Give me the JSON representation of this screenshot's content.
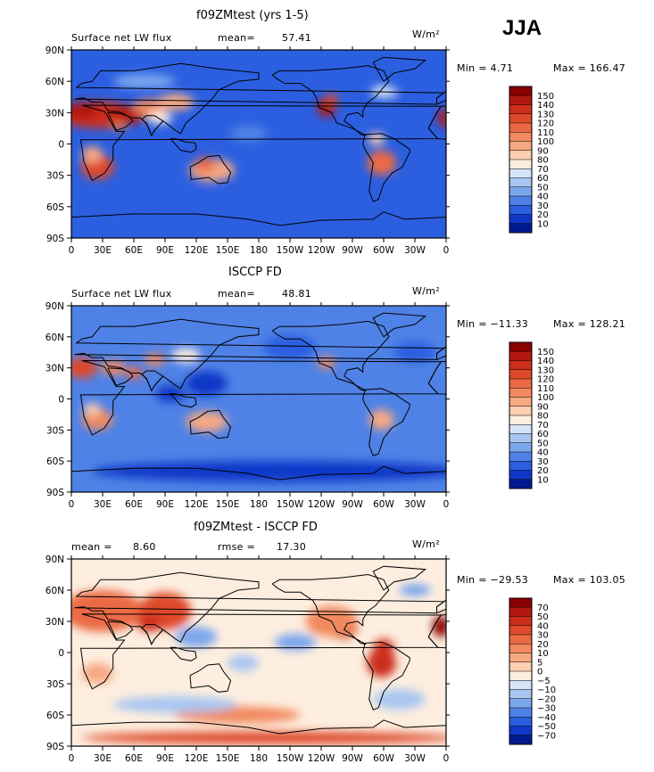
{
  "season_label": "JJA",
  "panels": [
    {
      "title": "f09ZMtest (yrs 1-5)",
      "left_label": "Surface net LW flux",
      "stat_label": "mean=",
      "stat_value": "57.41",
      "units": "W/m²",
      "min_text": "Min =    4.71",
      "max_text": "Max = 166.47"
    },
    {
      "title": "ISCCP FD",
      "left_label": "Surface net LW flux",
      "stat_label": "mean=",
      "stat_value": "48.81",
      "units": "W/m²",
      "min_text": "Min = −11.33",
      "max_text": "Max = 128.21"
    },
    {
      "title": "f09ZMtest - ISCCP FD",
      "left_label": "mean =",
      "left_value": "8.60",
      "stat_label": "rmse =",
      "stat_value": "17.30",
      "units": "W/m²",
      "min_text": "Min = −29.53",
      "max_text": "Max = 103.05"
    }
  ],
  "chart_data": [
    {
      "type": "heatmap",
      "title": "f09ZMtest (yrs 1-5)",
      "subtitle": "Surface net LW flux",
      "units": "W/m²",
      "mean": 57.41,
      "min": 4.71,
      "max": 166.47,
      "x_ticks": [
        "0",
        "30E",
        "60E",
        "90E",
        "120E",
        "150E",
        "180",
        "150W",
        "120W",
        "90W",
        "60W",
        "30W",
        "0"
      ],
      "y_ticks": [
        "90N",
        "60N",
        "30N",
        "0",
        "30S",
        "60S",
        "90S"
      ],
      "colorbar_levels": [
        "150",
        "140",
        "130",
        "120",
        "110",
        "100",
        "90",
        "80",
        "70",
        "60",
        "50",
        "40",
        "30",
        "20",
        "10"
      ],
      "colorbar_colors": [
        "#8b0000",
        "#b2180f",
        "#cc2f1a",
        "#de4a2a",
        "#eb6a44",
        "#f2895f",
        "#f6a882",
        "#fccfb1",
        "#fdeedf",
        "#d6e5f8",
        "#a8c6f1",
        "#7ca6ec",
        "#4f82e6",
        "#2b5fe0",
        "#1038c8",
        "#001a90"
      ]
    },
    {
      "type": "heatmap",
      "title": "ISCCP FD",
      "subtitle": "Surface net LW flux",
      "units": "W/m²",
      "mean": 48.81,
      "min": -11.33,
      "max": 128.21,
      "x_ticks": [
        "0",
        "30E",
        "60E",
        "90E",
        "120E",
        "150E",
        "180",
        "150W",
        "120W",
        "90W",
        "60W",
        "30W",
        "0"
      ],
      "y_ticks": [
        "90N",
        "60N",
        "30N",
        "0",
        "30S",
        "60S",
        "90S"
      ],
      "colorbar_levels": [
        "150",
        "140",
        "130",
        "120",
        "110",
        "100",
        "90",
        "80",
        "70",
        "60",
        "50",
        "40",
        "30",
        "20",
        "10"
      ],
      "colorbar_colors": [
        "#8b0000",
        "#b2180f",
        "#cc2f1a",
        "#de4a2a",
        "#eb6a44",
        "#f2895f",
        "#f6a882",
        "#fccfb1",
        "#fdeedf",
        "#d6e5f8",
        "#a8c6f1",
        "#7ca6ec",
        "#4f82e6",
        "#2b5fe0",
        "#1038c8",
        "#001a90"
      ]
    },
    {
      "type": "heatmap",
      "title": "f09ZMtest - ISCCP FD",
      "units": "W/m²",
      "mean": 8.6,
      "rmse": 17.3,
      "min": -29.53,
      "max": 103.05,
      "x_ticks": [
        "0",
        "30E",
        "60E",
        "90E",
        "120E",
        "150E",
        "180",
        "150W",
        "120W",
        "90W",
        "60W",
        "30W",
        "0"
      ],
      "y_ticks": [
        "90N",
        "60N",
        "30N",
        "0",
        "30S",
        "60S",
        "90S"
      ],
      "colorbar_levels": [
        "70",
        "50",
        "40",
        "30",
        "20",
        "10",
        "5",
        "0",
        "−5",
        "−10",
        "−20",
        "−30",
        "−40",
        "−50",
        "−70"
      ],
      "colorbar_colors": [
        "#8b0000",
        "#b2180f",
        "#cc2f1a",
        "#de4a2a",
        "#eb6a44",
        "#f2895f",
        "#f6a882",
        "#fccfb1",
        "#fdeedf",
        "#d6e5f8",
        "#a8c6f1",
        "#7ca6ec",
        "#4f82e6",
        "#2b5fe0",
        "#1038c8",
        "#001a90"
      ]
    }
  ]
}
